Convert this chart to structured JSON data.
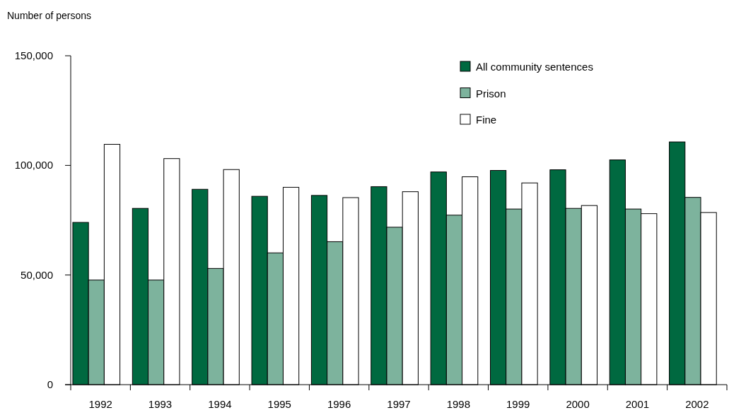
{
  "chart_data": {
    "type": "bar",
    "ylabel": "Number of persons",
    "categories": [
      "1992",
      "1993",
      "1994",
      "1995",
      "1996",
      "1997",
      "1998",
      "1999",
      "2000",
      "2001",
      "2002"
    ],
    "series": [
      {
        "name": "All community sentences",
        "color": "#006940",
        "values": [
          74000,
          80400,
          89100,
          85900,
          86300,
          90300,
          97000,
          97700,
          98000,
          102500,
          110700
        ]
      },
      {
        "name": "Prison",
        "color": "#7db39d",
        "values": [
          47700,
          47700,
          53000,
          60100,
          65200,
          71800,
          77300,
          80100,
          80400,
          80100,
          85400
        ]
      },
      {
        "name": "Fine",
        "color": "#ffffff",
        "values": [
          109600,
          103100,
          98100,
          90000,
          85300,
          88000,
          94800,
          92000,
          81700,
          78000,
          78500
        ]
      }
    ],
    "ylim": [
      0,
      150000
    ],
    "yticks": [
      {
        "value": 0,
        "label": "0"
      },
      {
        "value": 50000,
        "label": "50,000"
      },
      {
        "value": 100000,
        "label": "100,000"
      },
      {
        "value": 150000,
        "label": "150,000"
      }
    ],
    "grid": false,
    "legend": "top right"
  }
}
